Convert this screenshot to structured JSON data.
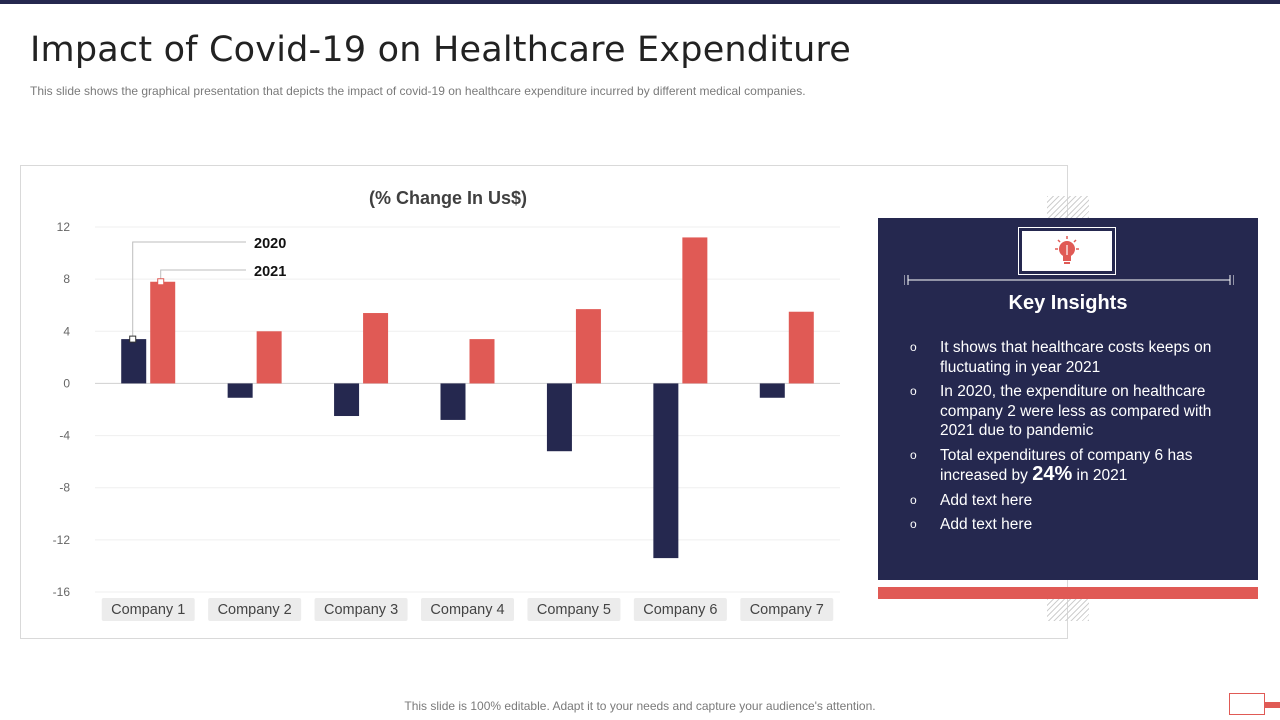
{
  "slide": {
    "title": "Impact of Covid-19 on Healthcare Expenditure",
    "subtitle": "This slide shows the graphical presentation that depicts the impact of covid-19 on healthcare expenditure incurred by different medical companies.",
    "footer": "This slide is 100% editable. Adapt it to your needs and capture your audience's attention."
  },
  "colors": {
    "navy": "#25284f",
    "coral": "#e05a55",
    "category_pill": "#ececec"
  },
  "chart_data": {
    "type": "bar",
    "title": "(% Change In Us$)",
    "categories": [
      "Company 1",
      "Company 2",
      "Company 3",
      "Company 4",
      "Company 5",
      "Company 6",
      "Company 7"
    ],
    "series": [
      {
        "name": "2020",
        "values": [
          3.4,
          -1.1,
          -2.5,
          -2.8,
          -5.2,
          -13.4,
          -1.1
        ],
        "color": "#25284f"
      },
      {
        "name": "2021",
        "values": [
          7.8,
          4.0,
          5.4,
          3.4,
          5.7,
          11.2,
          5.5
        ],
        "color": "#e05a55"
      }
    ],
    "ylim": [
      -16,
      12
    ],
    "yticks": [
      12,
      8,
      4,
      0,
      -4,
      -8,
      -12,
      -16
    ],
    "grid": true,
    "legend": "callout labels on Company 1 bars"
  },
  "insights_panel": {
    "title": "Key Insights",
    "icon": "lightbulb-icon",
    "bullet": "o",
    "items": [
      {
        "text": "It shows that healthcare costs keeps on fluctuating in year 2021"
      },
      {
        "text": "In 2020, the expenditure on healthcare company 2 were less as compared with 2021 due to pandemic"
      },
      {
        "pre": "Total expenditures of company 6 has increased by ",
        "highlight": "24%",
        "post": " in 2021"
      },
      {
        "text": "Add text here"
      },
      {
        "text": "Add text here"
      }
    ]
  }
}
